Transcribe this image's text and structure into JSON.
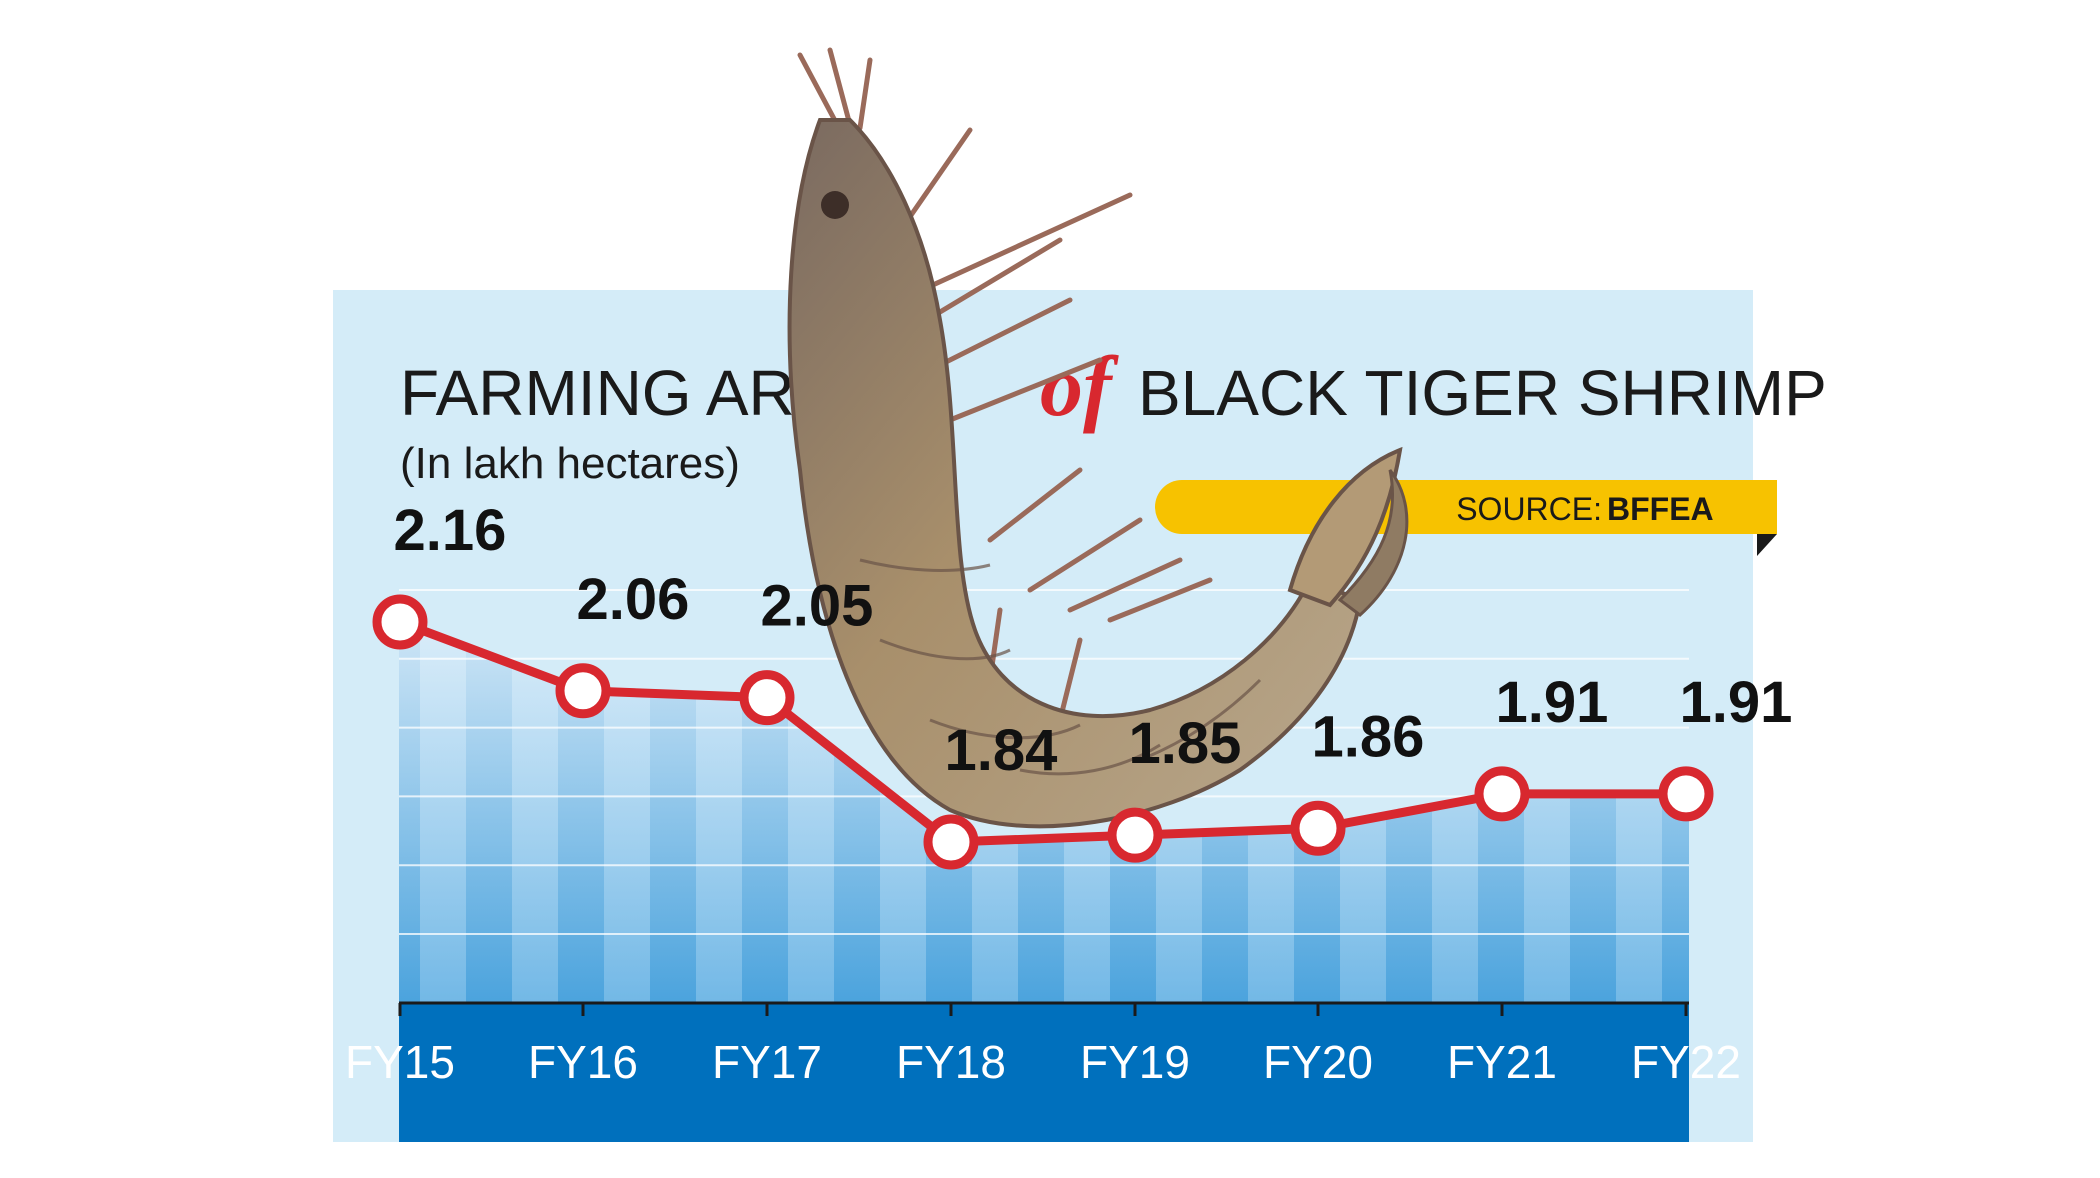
{
  "title_part1": "FARMING AREA",
  "title_of": "of",
  "title_part2": "BLACK TIGER SHRIMP",
  "subtitle": "(In lakh hectares)",
  "source_label": "SOURCE:",
  "source_value": "BFFEA",
  "colors": {
    "panel": "#d4ecf8",
    "line": "#d8282f",
    "axis_band": "#0070bd",
    "source_tag": "#f7c200"
  },
  "chart_data": {
    "type": "line",
    "title": "FARMING AREA of BLACK TIGER SHRIMP",
    "ylabel": "In lakh hectares",
    "categories": [
      "FY15",
      "FY16",
      "FY17",
      "FY18",
      "FY19",
      "FY20",
      "FY21",
      "FY22"
    ],
    "values": [
      2.16,
      2.06,
      2.05,
      1.84,
      1.85,
      1.86,
      1.91,
      1.91
    ],
    "value_labels": [
      "2.16",
      "2.06",
      "2.05",
      "1.84",
      "1.85",
      "1.86",
      "1.91",
      "1.91"
    ],
    "ylim": [
      1.6,
      2.25
    ],
    "grid": true
  }
}
